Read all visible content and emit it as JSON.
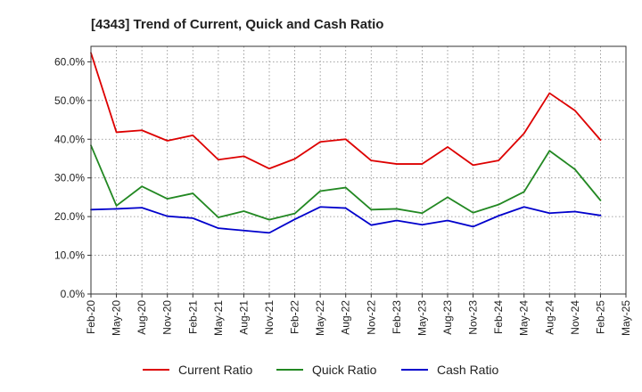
{
  "chart_data": {
    "type": "line",
    "title": "[4343]  Trend of Current, Quick and Cash Ratio",
    "xlabel": "",
    "ylabel": "",
    "ylim": [
      0,
      64
    ],
    "yticks": [
      0,
      10,
      20,
      30,
      40,
      50,
      60
    ],
    "ytick_labels": [
      "0.0%",
      "10.0%",
      "20.0%",
      "30.0%",
      "40.0%",
      "50.0%",
      "60.0%"
    ],
    "grid": true,
    "legend_position": "bottom",
    "x": [
      "Feb-20",
      "May-20",
      "Aug-20",
      "Nov-20",
      "Feb-21",
      "May-21",
      "Aug-21",
      "Nov-21",
      "Feb-22",
      "May-22",
      "Aug-22",
      "Nov-22",
      "Feb-23",
      "May-23",
      "Aug-23",
      "Nov-23",
      "Feb-24",
      "May-24",
      "Aug-24",
      "Nov-24",
      "Feb-25",
      "May-25"
    ],
    "series": [
      {
        "name": "Current Ratio",
        "color": "#dd0000",
        "values": [
          62.3,
          41.8,
          42.3,
          39.6,
          41.0,
          34.7,
          35.6,
          32.4,
          34.9,
          39.3,
          40.0,
          34.5,
          33.6,
          33.6,
          38.0,
          33.3,
          34.5,
          41.5,
          51.9,
          47.4,
          39.8,
          null
        ]
      },
      {
        "name": "Quick Ratio",
        "color": "#228822",
        "values": [
          38.4,
          22.8,
          27.8,
          24.6,
          26.0,
          19.8,
          21.4,
          19.2,
          20.8,
          26.6,
          27.5,
          21.8,
          22.0,
          20.9,
          25.0,
          21.0,
          23.1,
          26.4,
          37.0,
          32.2,
          24.2,
          null
        ]
      },
      {
        "name": "Cash Ratio",
        "color": "#0000cc",
        "values": [
          21.8,
          22.0,
          22.3,
          20.1,
          19.6,
          17.0,
          16.4,
          15.8,
          19.3,
          22.5,
          22.2,
          17.8,
          19.0,
          17.9,
          19.0,
          17.4,
          20.2,
          22.5,
          20.9,
          21.3,
          20.3,
          null
        ]
      }
    ]
  }
}
